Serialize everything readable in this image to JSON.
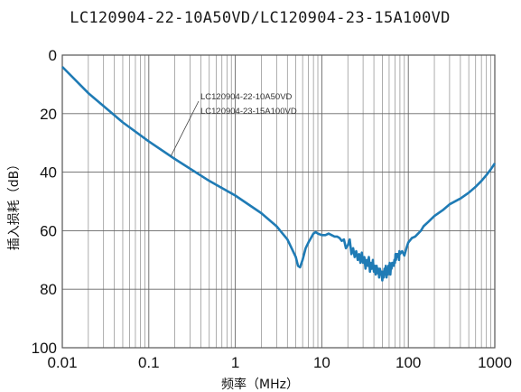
{
  "chart_data": {
    "type": "line",
    "title": "LC120904-22-10A50VD/LC120904-23-15A100VD",
    "xlabel": "频率（MHz）",
    "ylabel": "插入损耗（dB）",
    "xscale": "log",
    "xlim": [
      0.01,
      1000
    ],
    "ylim": [
      0,
      100
    ],
    "y_inverted": true,
    "grid": true,
    "x_ticks": [
      "0.01",
      "0.1",
      "1",
      "10",
      "100",
      "1000"
    ],
    "y_ticks": [
      "0",
      "20",
      "40",
      "60",
      "80",
      "100"
    ],
    "legend_entries": [
      "LC120904-22-10A50VD",
      "LC120904-23-15A100VD"
    ],
    "legend_placement": "top-center",
    "line_color": "#1f7bb5",
    "series": [
      {
        "name": "LC120904-22-10A50VD / LC120904-23-15A100VD",
        "x": [
          0.01,
          0.02,
          0.05,
          0.1,
          0.2,
          0.5,
          1,
          2,
          3,
          4,
          5,
          5.3,
          5.6,
          6,
          6.5,
          7,
          7.5,
          8,
          8.5,
          9,
          10,
          11,
          12,
          13,
          14,
          15,
          16,
          17,
          18,
          19,
          20,
          21,
          22,
          23,
          24,
          25,
          26,
          27,
          28,
          29,
          30,
          31,
          32,
          33,
          34,
          35,
          36,
          37,
          38,
          39,
          40,
          41,
          42,
          43,
          44,
          45,
          46,
          47,
          48,
          49,
          50,
          51,
          52,
          53,
          54,
          55,
          56,
          57,
          58,
          59,
          60,
          61,
          62,
          63,
          64,
          65,
          66,
          67,
          68,
          69,
          70,
          71,
          72,
          73,
          74,
          75,
          76,
          77,
          78,
          79,
          80,
          85,
          90,
          95,
          100,
          110,
          120,
          130,
          140,
          150,
          170,
          200,
          250,
          300,
          400,
          500,
          600,
          700,
          800,
          900,
          1000
        ],
        "y": [
          4,
          13,
          23,
          29.5,
          35.5,
          43,
          48,
          54,
          58.5,
          63,
          69,
          72,
          72.5,
          70,
          66,
          64,
          62.5,
          61,
          60.5,
          61,
          61.5,
          61.5,
          61,
          61.5,
          62,
          62,
          62.5,
          63.5,
          63,
          66,
          65,
          63,
          68,
          66,
          69,
          67,
          70,
          68,
          71,
          67.5,
          71,
          69,
          73,
          70,
          72,
          69,
          74,
          71,
          73,
          70,
          74,
          72,
          75,
          72,
          74.5,
          73,
          76,
          73,
          75,
          74,
          77,
          74,
          76,
          73,
          75,
          72,
          76,
          73,
          75,
          72,
          74,
          71,
          75,
          72,
          73,
          71,
          72,
          71,
          72,
          70,
          71,
          68,
          70,
          68,
          69,
          68,
          69,
          68,
          70,
          67,
          68,
          67,
          68.5,
          66,
          64,
          62.5,
          62,
          61,
          60,
          58.5,
          57,
          55,
          53,
          51,
          49,
          47,
          45,
          43,
          41,
          39,
          37
        ]
      }
    ]
  }
}
